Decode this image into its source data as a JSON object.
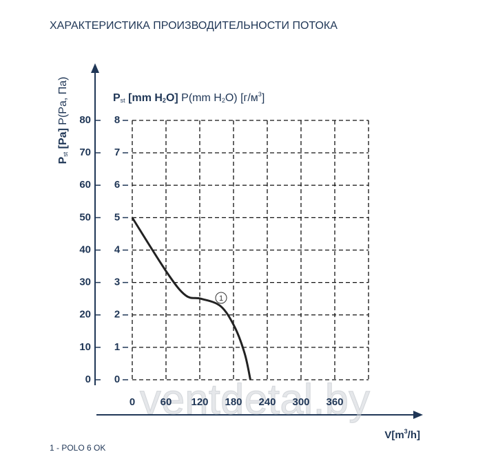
{
  "chart_data": {
    "type": "line",
    "title": "ХАРАКТЕРИСТИКА ПРОИЗВОДИТЕЛЬНОСТИ ПОТОКА",
    "y_label": [
      {
        "text": "P",
        "style": "bold"
      },
      {
        "text": "st",
        "style": "sub"
      },
      {
        "text": " [Pa]",
        "style": "bold"
      },
      {
        "text": " P(Pa, Па)",
        "style": "normal"
      }
    ],
    "y2_label": [
      {
        "text": "P",
        "style": "bold"
      },
      {
        "text": "st",
        "style": "sub"
      },
      {
        "text": " [mm H",
        "style": "bold"
      },
      {
        "text": "2",
        "style": "boldsub"
      },
      {
        "text": "O]",
        "style": "bold"
      },
      {
        "text": " P(mm H",
        "style": "normal"
      },
      {
        "text": "2",
        "style": "sub"
      },
      {
        "text": "O) [г/м",
        "style": "normal"
      },
      {
        "text": "3",
        "style": "sup"
      },
      {
        "text": "]",
        "style": "normal"
      }
    ],
    "x_label": [
      {
        "text": "V[m",
        "style": "bold"
      },
      {
        "text": "3",
        "style": "boldsup"
      },
      {
        "text": "/h]",
        "style": "bold"
      }
    ],
    "xlim": [
      0,
      420
    ],
    "xticks": [
      0,
      60,
      120,
      180,
      240,
      300,
      360
    ],
    "ylim": [
      0,
      80
    ],
    "yticks": [
      0,
      10,
      20,
      30,
      40,
      50,
      60,
      70,
      80
    ],
    "y2lim": [
      0,
      8
    ],
    "y2ticks": [
      0,
      1,
      2,
      3,
      4,
      5,
      6,
      7,
      8
    ],
    "grid": true,
    "series": [
      {
        "name": "1",
        "color": "#222222",
        "x": [
          0,
          62,
          95,
          122,
          157,
          182,
          200,
          210
        ],
        "values": [
          50,
          33,
          26,
          25,
          22.7,
          16.3,
          8,
          0
        ]
      }
    ],
    "footnote": "1 - POLO 6 OK",
    "watermark": "ventdetal.by"
  }
}
